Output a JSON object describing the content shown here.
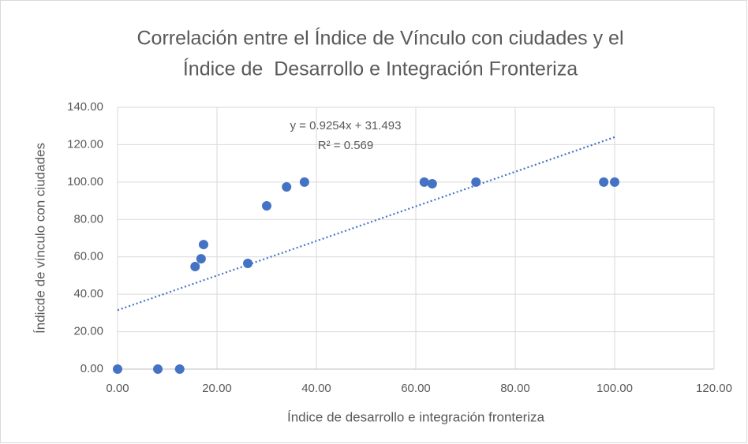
{
  "chart_data": {
    "type": "scatter",
    "title": [
      "Correlación entre el Índice de Vínculo con ciudades y el",
      "Índice de  Desarrollo e Integración Fronteriza"
    ],
    "x_label": "Índice de desarrollo e integración fronteriza",
    "y_label": "Índicde de vínculo con ciudades",
    "x": [
      0,
      8.1,
      12.5,
      15.6,
      16.8,
      17.3,
      26.2,
      30.0,
      34.0,
      37.6,
      61.7,
      63.3,
      72.1,
      97.8,
      100
    ],
    "y": [
      0,
      0,
      0,
      54.8,
      59.0,
      66.6,
      56.5,
      87.3,
      97.4,
      100,
      100,
      99.1,
      100,
      100,
      100
    ],
    "color": "#4472c4",
    "xlim": [
      0,
      120
    ],
    "ylim": [
      0,
      140
    ],
    "xticks": [
      {
        "value": 0,
        "label": "0.00"
      },
      {
        "value": 20,
        "label": "20.00"
      },
      {
        "value": 40,
        "label": "40.00"
      },
      {
        "value": 60,
        "label": "60.00"
      },
      {
        "value": 80,
        "label": "80.00"
      },
      {
        "value": 100,
        "label": "100.00"
      },
      {
        "value": 120,
        "label": "120.00"
      }
    ],
    "yticks": [
      {
        "value": 0,
        "label": "0.00"
      },
      {
        "value": 20,
        "label": "20.00"
      },
      {
        "value": 40,
        "label": "40.00"
      },
      {
        "value": 60,
        "label": "60.00"
      },
      {
        "value": 80,
        "label": "80.00"
      },
      {
        "value": 100,
        "label": "100.00"
      },
      {
        "value": 120,
        "label": "120.00"
      },
      {
        "value": 140,
        "label": "140.00"
      }
    ],
    "grid": true,
    "trendline": {
      "slope": 0.9254,
      "intercept": 31.493,
      "xrange": [
        0,
        100
      ],
      "equation": "y = 0.9254x + 31.493",
      "r2": "R² = 0.569"
    }
  }
}
